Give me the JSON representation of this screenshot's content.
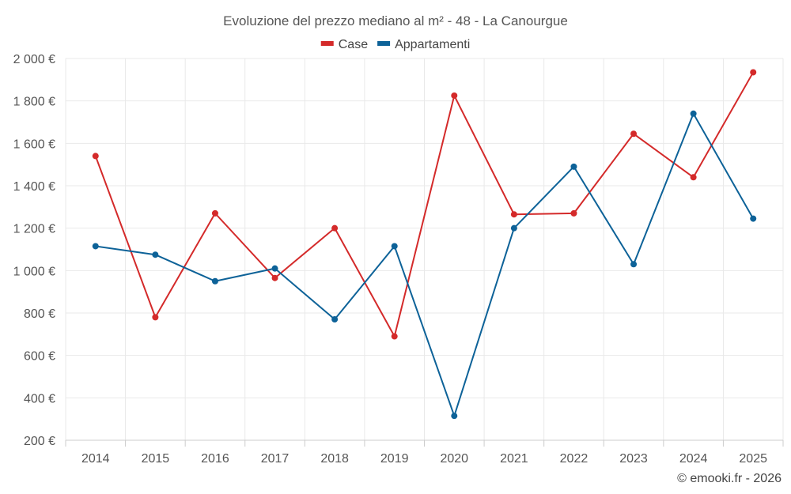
{
  "chart_data": {
    "type": "line",
    "title": "Evoluzione del prezzo mediano al m² - 48 - La Canourgue",
    "categories": [
      "2014",
      "2015",
      "2016",
      "2017",
      "2018",
      "2019",
      "2020",
      "2021",
      "2022",
      "2023",
      "2024",
      "2025"
    ],
    "series": [
      {
        "name": "Case",
        "color": "#d42a2a",
        "values": [
          1540,
          780,
          1270,
          965,
          1200,
          690,
          1825,
          1265,
          1270,
          1645,
          1440,
          1935
        ]
      },
      {
        "name": "Appartamenti",
        "color": "#0d6298",
        "values": [
          1115,
          1075,
          950,
          1010,
          770,
          1115,
          315,
          1200,
          1490,
          1030,
          1740,
          1245
        ]
      }
    ],
    "ylim": [
      200,
      2000
    ],
    "yticks": [
      200,
      400,
      600,
      800,
      1000,
      1200,
      1400,
      1600,
      1800,
      2000
    ],
    "ytick_labels": [
      "200 €",
      "400 €",
      "600 €",
      "800 €",
      "1 000 €",
      "1 200 €",
      "1 400 €",
      "1 600 €",
      "1 800 €",
      "2 000 €"
    ],
    "xlabel": "",
    "ylabel": "",
    "grid": true,
    "legend": "top-center"
  },
  "credit": "© emooki.fr - 2026"
}
